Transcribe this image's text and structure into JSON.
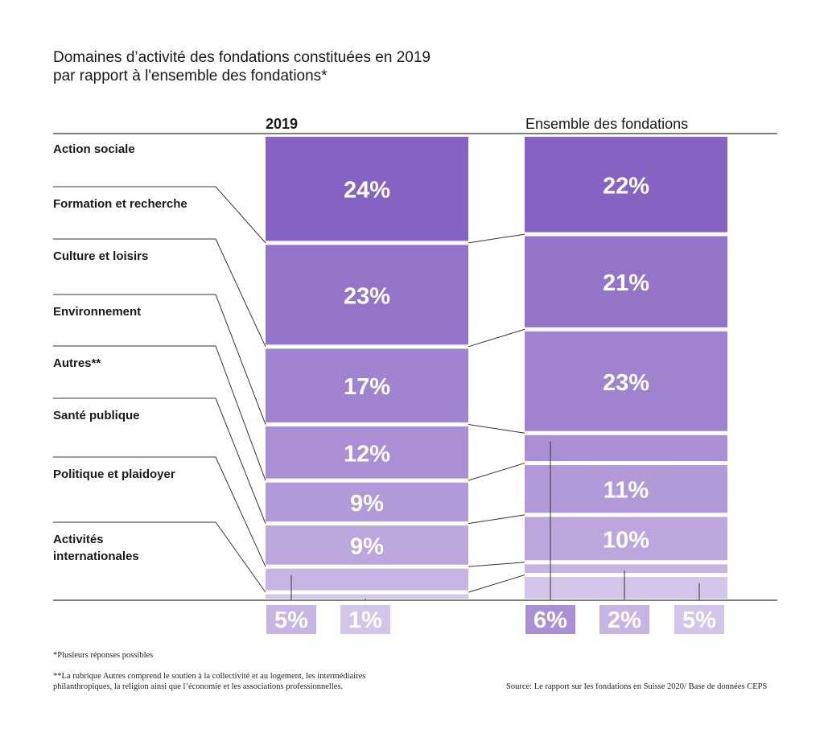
{
  "title_line1": "Domaines d’activité des fondations constituées en 2019",
  "title_line2": "par rapport à l'ensemble des fondations*",
  "chart_data": {
    "type": "bar",
    "orientation": "stacked-vertical",
    "categories": [
      "Action sociale",
      "Formation et recherche",
      "Culture et loisirs",
      "Environnement",
      "Autres**",
      "Santé publique",
      "Politique et plaidoyer",
      "Activités internationales"
    ],
    "category_labels": [
      [
        "Action sociale"
      ],
      [
        "Formation et recherche"
      ],
      [
        "Culture et loisirs"
      ],
      [
        "Environnement"
      ],
      [
        "Autres**"
      ],
      [
        "Santé publique"
      ],
      [
        "Politique et plaidoyer"
      ],
      [
        "Activités",
        "internationales"
      ]
    ],
    "series": [
      {
        "name": "2019",
        "values": [
          24,
          23,
          17,
          12,
          9,
          9,
          5,
          1
        ],
        "labels": [
          "24%",
          "23%",
          "17%",
          "12%",
          "9%",
          "9%",
          "5%",
          "1%"
        ]
      },
      {
        "name": "Ensemble des fondations",
        "values": [
          22,
          21,
          23,
          6,
          11,
          10,
          2,
          5
        ],
        "labels": [
          "22%",
          "21%",
          "23%",
          "6%",
          "11%",
          "10%",
          "2%",
          "5%"
        ]
      }
    ],
    "colors": [
      "#8563c3",
      "#9474c9",
      "#a083cf",
      "#aa8fd4",
      "#b29ad9",
      "#bba6dd",
      "#c6b4e3",
      "#d3c5ea"
    ],
    "label_color": "#ffffff"
  },
  "footnotes": {
    "note1": "*Plusieurs réponses possibles",
    "note2_line1": "**La rubrique Autres comprend le soutien à la collectivité et au logement, les intermédiaires",
    "note2_line2": "philanthropiques, la religion ainsi que l’économie et les associations professionnelles.",
    "source": "Source: Le rapport sur les fondations en Suisse 2020/ Base de données CEPS"
  }
}
